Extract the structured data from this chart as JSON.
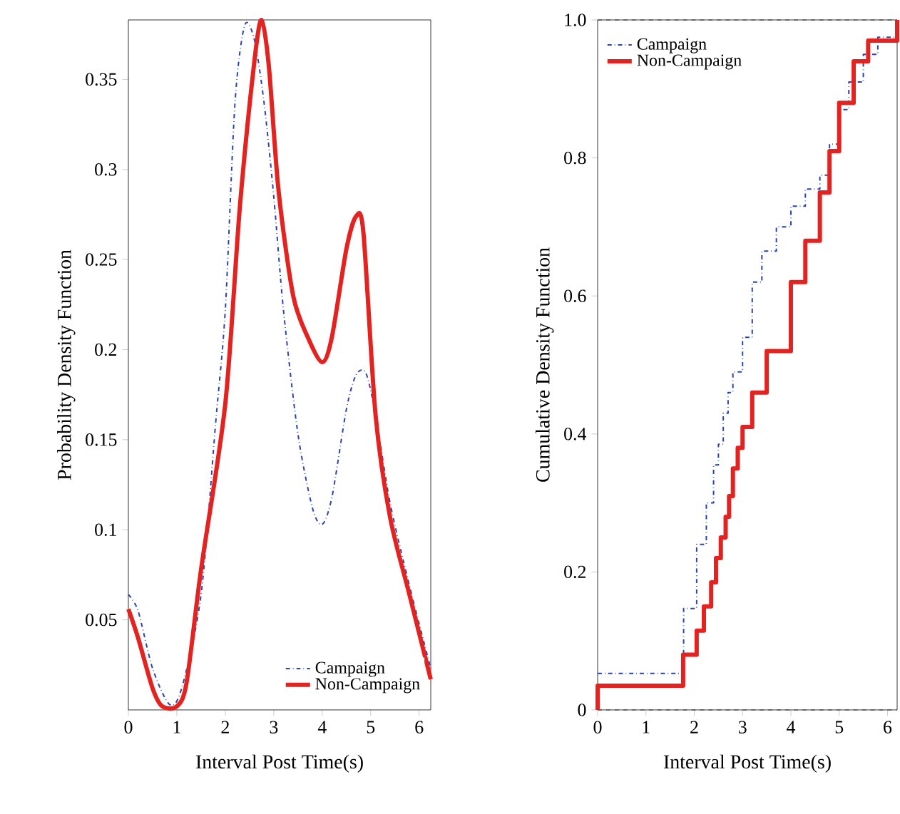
{
  "chart_data": [
    {
      "type": "line",
      "xlabel": "Interval Post Time(s)",
      "ylabel": "Probability Density Function",
      "xlim": [
        0,
        6.24
      ],
      "ylim": [
        0,
        0.383
      ],
      "xticks": [
        0,
        1,
        2,
        3,
        4,
        5,
        6
      ],
      "yticks": [
        0.05,
        0.1,
        0.15,
        0.2,
        0.25,
        0.3,
        0.35
      ],
      "legend": "bottom right",
      "series": [
        {
          "name": "Campaign",
          "color": "#2a44b0",
          "line_style": "dashdot",
          "x": [
            0,
            0.2,
            0.5,
            0.85,
            1.1,
            1.5,
            1.8,
            2.0,
            2.2,
            2.4,
            2.6,
            2.8,
            3.0,
            3.2,
            3.5,
            3.8,
            4.0,
            4.2,
            4.5,
            4.7,
            4.9,
            5.1,
            5.4,
            5.8,
            6.24
          ],
          "values": [
            0.064,
            0.055,
            0.023,
            0.003,
            0.012,
            0.064,
            0.159,
            0.222,
            0.337,
            0.38,
            0.372,
            0.337,
            0.285,
            0.222,
            0.153,
            0.112,
            0.103,
            0.118,
            0.167,
            0.186,
            0.187,
            0.164,
            0.115,
            0.069,
            0.023
          ]
        },
        {
          "name": "Non-Campaign",
          "color": "#e42320",
          "line_style": "solid",
          "x": [
            0,
            0.2,
            0.5,
            0.7,
            1.0,
            1.2,
            1.5,
            2.0,
            2.3,
            2.6,
            2.75,
            2.9,
            3.1,
            3.4,
            3.7,
            4.0,
            4.2,
            4.5,
            4.7,
            4.85,
            5.1,
            5.4,
            5.8,
            6.24
          ],
          "values": [
            0.056,
            0.04,
            0.012,
            0.002,
            0.002,
            0.015,
            0.078,
            0.17,
            0.279,
            0.36,
            0.383,
            0.357,
            0.288,
            0.23,
            0.207,
            0.193,
            0.207,
            0.256,
            0.274,
            0.265,
            0.164,
            0.107,
            0.064,
            0.017
          ]
        }
      ]
    },
    {
      "type": "step",
      "xlabel": "Interval Post Time(s)",
      "ylabel": "Cumulative Density Function",
      "xlim": [
        0,
        6.2
      ],
      "ylim": [
        0,
        1
      ],
      "xticks": [
        0,
        1,
        2,
        3,
        4,
        5,
        6
      ],
      "yticks": [
        0,
        0.2,
        0.4,
        0.6,
        0.8,
        {
          "value": 1,
          "label": "1.0"
        }
      ],
      "legend": "top left",
      "ref_lines": [
        {
          "axis": "y",
          "value": 0,
          "color": "#555555",
          "line_style": "dashed"
        },
        {
          "axis": "y",
          "value": 1,
          "color": "#555555",
          "line_style": "dashed"
        }
      ],
      "series": [
        {
          "name": "Campaign",
          "color": "#2a44b0",
          "line_style": "dashdot",
          "x": [
            0,
            1.78,
            2.05,
            2.25,
            2.4,
            2.5,
            2.6,
            2.7,
            2.8,
            3.0,
            3.2,
            3.4,
            3.7,
            4.0,
            4.3,
            4.6,
            4.8,
            5.0,
            5.2,
            5.5,
            5.8,
            6.2
          ],
          "values": [
            0.053,
            0.147,
            0.24,
            0.3,
            0.355,
            0.385,
            0.43,
            0.46,
            0.49,
            0.54,
            0.62,
            0.665,
            0.7,
            0.73,
            0.755,
            0.775,
            0.82,
            0.87,
            0.91,
            0.95,
            0.975,
            1.0
          ]
        },
        {
          "name": "Non-Campaign",
          "color": "#e42320",
          "line_style": "solid",
          "x": [
            0,
            0,
            1.77,
            2.05,
            2.2,
            2.35,
            2.45,
            2.55,
            2.65,
            2.72,
            2.8,
            2.9,
            3.0,
            3.2,
            3.5,
            4.0,
            4.3,
            4.6,
            4.8,
            5.0,
            5.3,
            5.6,
            6.2
          ],
          "values": [
            0,
            0.035,
            0.08,
            0.115,
            0.15,
            0.185,
            0.22,
            0.25,
            0.28,
            0.31,
            0.35,
            0.38,
            0.41,
            0.46,
            0.52,
            0.62,
            0.68,
            0.75,
            0.81,
            0.88,
            0.94,
            0.97,
            1.0
          ]
        }
      ]
    }
  ]
}
